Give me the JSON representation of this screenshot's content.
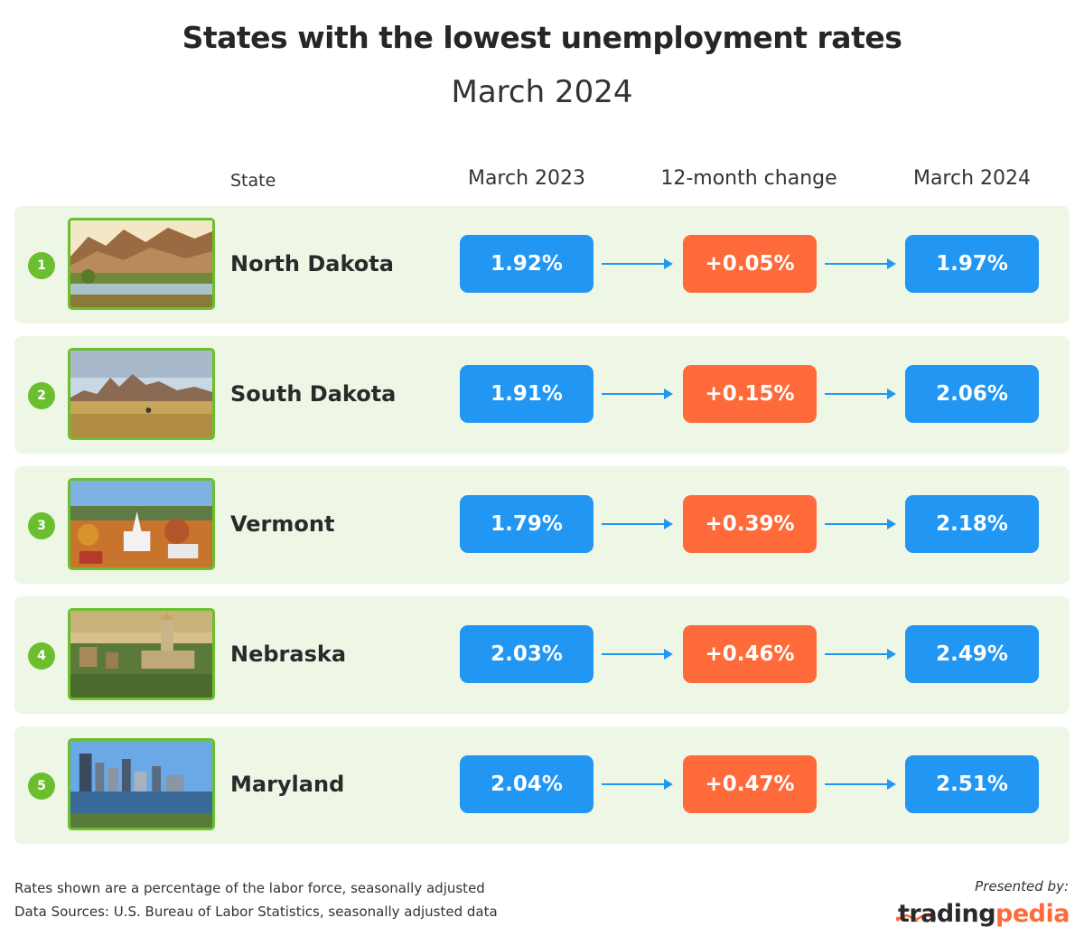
{
  "title": "States with the lowest unemployment rates",
  "subtitle": "March 2024",
  "columns": {
    "state": "State",
    "march2023": "March 2023",
    "change": "12-month change",
    "march2024": "March 2024"
  },
  "chart_data": {
    "type": "table",
    "title": "States with the lowest unemployment rates",
    "subtitle": "March 2024",
    "unit": "%",
    "columns": [
      "State",
      "March 2023",
      "12-month change",
      "March 2024"
    ],
    "rows": [
      {
        "rank": "1",
        "state": "North Dakota",
        "march2023": "1.92%",
        "change": "+0.05%",
        "march2024": "1.97%"
      },
      {
        "rank": "2",
        "state": "South Dakota",
        "march2023": "1.91%",
        "change": "+0.15%",
        "march2024": "2.06%"
      },
      {
        "rank": "3",
        "state": "Vermont",
        "march2023": "1.79%",
        "change": "+0.39%",
        "march2024": "2.18%"
      },
      {
        "rank": "4",
        "state": "Nebraska",
        "march2023": "2.03%",
        "change": "+0.46%",
        "march2024": "2.49%"
      },
      {
        "rank": "5",
        "state": "Maryland",
        "march2023": "2.04%",
        "change": "+0.47%",
        "march2024": "2.51%"
      }
    ]
  },
  "colors": {
    "rate": "#2196f3",
    "change": "#ff6a3a",
    "rank": "#6bbf2e",
    "row_bg": "#eef7e6"
  },
  "footer": {
    "note1": "Rates shown are a percentage of the labor force, seasonally adjusted",
    "note2": "Data Sources: U.S. Bureau of Labor Statistics, seasonally adjusted data",
    "presented_by": "Presented by:",
    "brand_part1": "trading",
    "brand_part2": "pedia"
  }
}
